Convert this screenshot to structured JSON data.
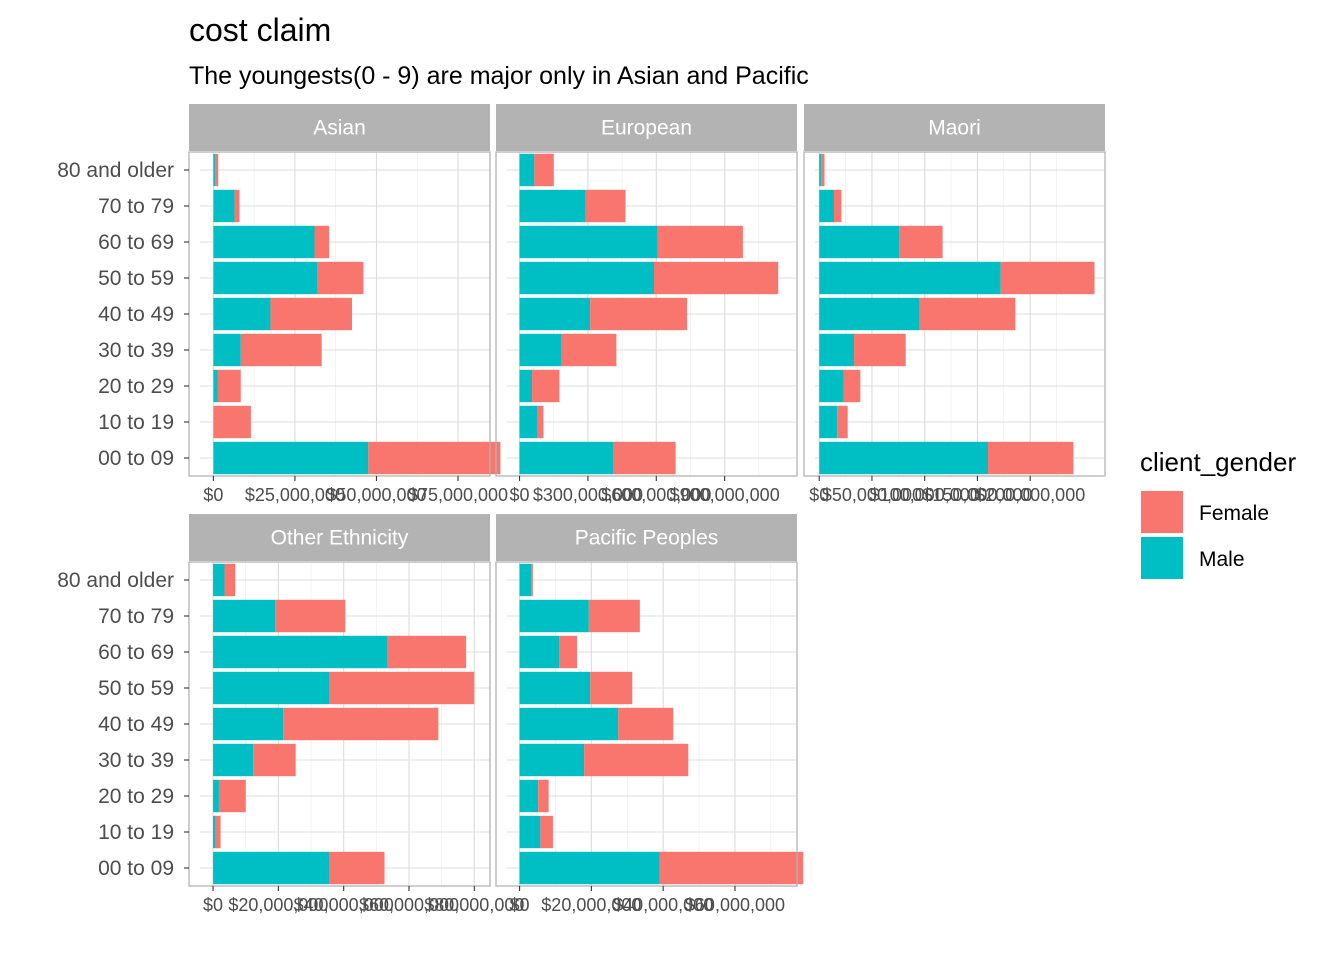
{
  "chart_data": {
    "type": "bar",
    "orientation": "horizontal",
    "stacked": true,
    "title": "cost claim",
    "subtitle": "The youngests(0 - 9) are major only in Asian and Pacific",
    "categories": [
      "00 to 09",
      "10 to 19",
      "20 to 29",
      "30 to 39",
      "40 to 49",
      "50 to 59",
      "60 to 69",
      "70 to 79",
      "80 and older"
    ],
    "legend": {
      "title": "client_gender",
      "position": "right",
      "entries": [
        {
          "name": "Female",
          "color": "#F8766D"
        },
        {
          "name": "Male",
          "color": "#00BFC4"
        }
      ]
    },
    "grid": true,
    "panels": [
      {
        "name": "Asian",
        "x_ticks": [
          0,
          25000000,
          50000000,
          75000000
        ],
        "x_tick_labels": [
          "$0",
          "$25,000,000",
          "$50,000,000",
          "$75,000,000"
        ],
        "xlim": [
          -4100000,
          84500000
        ],
        "series": [
          {
            "name": "Male",
            "values": [
              47500000,
              0,
              1400000,
              8400000,
              17500000,
              32000000,
              31000000,
              6500000,
              600000
            ]
          },
          {
            "name": "Female",
            "values": [
              40500000,
              11500000,
              7000000,
              24800000,
              25000000,
              14000000,
              4500000,
              1500000,
              900000
            ]
          }
        ]
      },
      {
        "name": "European",
        "x_ticks": [
          0,
          300000000,
          600000000,
          900000000
        ],
        "x_tick_labels": [
          "$0",
          "$300,000,000",
          "$600,000,000",
          "$900,000,000"
        ],
        "xlim": [
          -55000000,
          1213000000
        ],
        "series": [
          {
            "name": "Male",
            "values": [
              410000000,
              80000000,
              55000000,
              185000000,
              310000000,
              590000000,
              605000000,
              290000000,
              65000000
            ]
          },
          {
            "name": "Female",
            "values": [
              275000000,
              25000000,
              120000000,
              240000000,
              425000000,
              545000000,
              375000000,
              175000000,
              85000000
            ]
          }
        ]
      },
      {
        "name": "Maori",
        "x_ticks": [
          0,
          50000000,
          100000000,
          150000000,
          200000000
        ],
        "x_tick_labels": [
          "$0",
          "$50,000,000",
          "$100,000,000",
          "$150,000,000",
          "$200,000,000"
        ],
        "xlim": [
          -4000000,
          270000000
        ],
        "series": [
          {
            "name": "Male",
            "values": [
              160000000,
              17000000,
              23000000,
              33000000,
              95000000,
              172000000,
              76000000,
              14000000,
              2000000
            ]
          },
          {
            "name": "Female",
            "values": [
              81000000,
              10000000,
              16000000,
              49000000,
              91000000,
              89000000,
              41000000,
              7000000,
              3000000
            ]
          }
        ]
      },
      {
        "name": "Other Ethnicity",
        "x_ticks": [
          0,
          20000000,
          40000000,
          60000000,
          80000000
        ],
        "x_tick_labels": [
          "$0",
          "$20,000,000",
          "$40,000,000",
          "$60,000,000",
          "$80,000,000"
        ],
        "xlim": [
          -4000000,
          84500000
        ],
        "series": [
          {
            "name": "Male",
            "values": [
              35500000,
              600000,
              1800000,
              12300000,
              21500000,
              35500000,
              53500000,
              19000000,
              3500000
            ]
          },
          {
            "name": "Female",
            "values": [
              17000000,
              1700000,
              8200000,
              13000000,
              47500000,
              44500000,
              24000000,
              21500000,
              3300000
            ]
          }
        ]
      },
      {
        "name": "Pacific Peoples",
        "x_ticks": [
          0,
          20000000,
          40000000,
          60000000
        ],
        "x_tick_labels": [
          "$0",
          "$20,000,000",
          "$40,000,000",
          "$60,000,000"
        ],
        "xlim": [
          -3500000,
          77000000
        ],
        "series": [
          {
            "name": "Male",
            "values": [
              39000000,
              5800000,
              5200000,
              18000000,
              27500000,
              19700000,
              11000000,
              19300000,
              3200000
            ]
          },
          {
            "name": "Female",
            "values": [
              40000000,
              3500000,
              2900000,
              29000000,
              15300000,
              11700000,
              5000000,
              14200000,
              500000
            ]
          }
        ]
      }
    ]
  }
}
